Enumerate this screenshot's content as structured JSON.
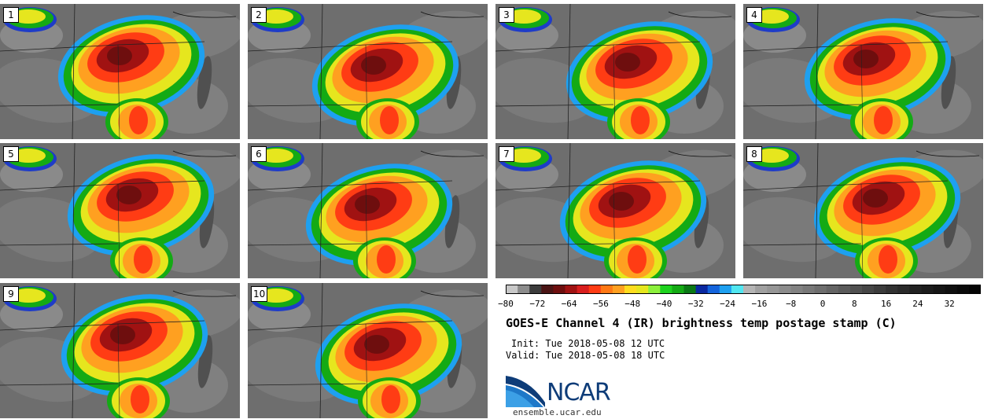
{
  "title": "GOES-E Channel 4 (IR) brightness temp postage stamp (C)",
  "init_line": "Init: Tue 2018-05-08 12 UTC",
  "valid_line": "Valid: Tue 2018-05-08 18 UTC",
  "logo_text": "NCAR",
  "site": "ensemble.ucar.edu",
  "panels": [
    {
      "label": "1"
    },
    {
      "label": "2"
    },
    {
      "label": "3"
    },
    {
      "label": "4"
    },
    {
      "label": "5"
    },
    {
      "label": "6"
    },
    {
      "label": "7"
    },
    {
      "label": "8"
    },
    {
      "label": "9"
    },
    {
      "label": "10"
    }
  ],
  "colorbar": {
    "tick_labels": [
      "−80",
      "−72",
      "−64",
      "−56",
      "−48",
      "−40",
      "−32",
      "−24",
      "−16",
      "−8",
      "0",
      "8",
      "16",
      "24",
      "32"
    ],
    "colors": [
      "#c8c8c8",
      "#8c8c8c",
      "#3c3c3c",
      "#4a1414",
      "#6e0e0e",
      "#a01212",
      "#d81e1e",
      "#ff3c14",
      "#ff7814",
      "#ffa020",
      "#ffdc1e",
      "#e6e61e",
      "#8cf03c",
      "#1ed21e",
      "#14aa14",
      "#0a7814",
      "#0a28a0",
      "#1464dc",
      "#1ea0f0",
      "#50e6f0",
      "#b4b4b4",
      "#a0a0a0",
      "#969696",
      "#8c8c8c",
      "#828282",
      "#787878",
      "#6e6e6e",
      "#646464",
      "#5a5a5a",
      "#505050",
      "#464646",
      "#3c3c3c",
      "#323232",
      "#2a2a2a",
      "#222222",
      "#1c1c1c",
      "#161616",
      "#101010",
      "#0a0a0a",
      "#050505"
    ]
  }
}
